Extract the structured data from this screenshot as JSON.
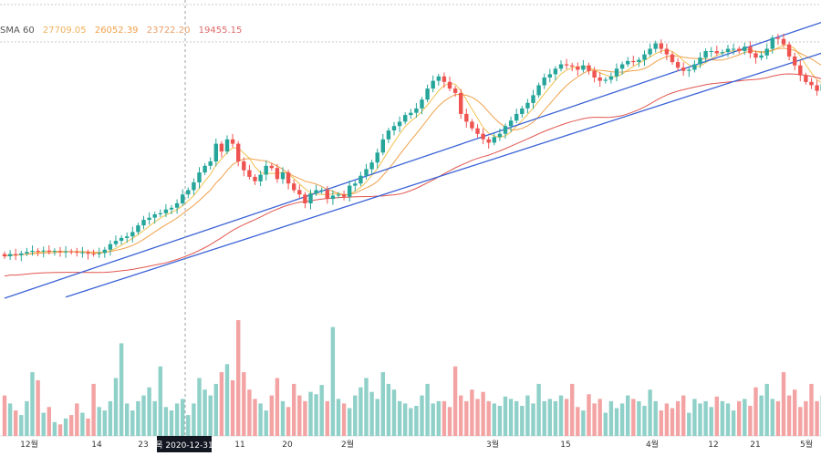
{
  "legend": {
    "label": "SMA 60",
    "values": [
      "27709.05",
      "26052.39",
      "23722.20",
      "19455.15"
    ],
    "colors": [
      "#f0b15a",
      "#f3a04a",
      "#e9a06a",
      "#e06a6a"
    ]
  },
  "crosshair_label": "목 2020-12-31",
  "colors": {
    "up": "#26a69a",
    "down": "#ef5350",
    "vol_up": "#8fd0c8",
    "vol_down": "#f3a3a3",
    "trend": "#3b63d6",
    "ma_fast": "#f2c14e",
    "ma_mid": "#f0a04b",
    "ma_slow": "#e0564f"
  },
  "chart_data": {
    "type": "candlestick",
    "title": "",
    "x_tick_labels": [
      "12월",
      "14",
      "23",
      "11",
      "20",
      "2월",
      "3월",
      "15",
      "4월",
      "12",
      "21",
      "5월"
    ],
    "price_range": [
      0,
      100
    ],
    "closes": [
      19.0,
      20.0,
      19.5,
      20.3,
      21.0,
      21.5,
      21.2,
      21.6,
      21.0,
      21.4,
      21.0,
      21.2,
      21.0,
      20.6,
      20.8,
      20.2,
      20.0,
      20.5,
      22.0,
      24.5,
      26.0,
      27.3,
      28.0,
      30.0,
      33.0,
      35.5,
      36.5,
      38.0,
      38.5,
      40.2,
      41.0,
      43.0,
      47.0,
      49.0,
      52.5,
      57.0,
      60.0,
      62.0,
      70.0,
      66.5,
      72.0,
      70.0,
      62.0,
      58.0,
      55.0,
      53.0,
      56.0,
      60.0,
      59.0,
      54.0,
      57.0,
      52.0,
      49.0,
      47.0,
      43.0,
      47.5,
      49.0,
      49.0,
      45.0,
      46.5,
      47.0,
      46.0,
      51.0,
      52.0,
      55.5,
      58.5,
      61.5,
      66.0,
      72.0,
      76.0,
      78.0,
      80.0,
      83.0,
      84.0,
      86.0,
      90.0,
      95.0,
      98.5,
      100.5,
      98.0,
      95.0,
      93.0,
      83.5,
      80.0,
      77.0,
      74.5,
      72.0,
      70.5,
      73.0,
      74.5,
      78.0,
      80.5,
      83.5,
      86.0,
      88.5,
      92.0,
      96.5,
      100.0,
      101.5,
      104.0,
      106.0,
      105.5,
      105.0,
      103.5,
      105.5,
      103.0,
      100.0,
      98.5,
      99.0,
      100.5,
      104.0,
      106.0,
      107.5,
      107.0,
      108.0,
      110.5,
      113.0,
      115.5,
      113.0,
      110.5,
      107.0,
      104.5,
      103.0,
      103.5,
      106.0,
      109.0,
      112.0,
      112.0,
      111.0,
      111.5,
      113.0,
      113.0,
      112.0,
      114.0,
      111.0,
      109.0,
      110.0,
      113.0,
      118.0,
      117.5,
      115.0,
      109.5,
      105.5,
      101.0,
      98.0,
      96.5,
      94.0,
      97.0,
      99.5,
      101.0,
      103.0,
      108.0,
      109.5,
      110.0
    ],
    "trend_channel": {
      "upper": [
        [
          0,
          0.0
        ],
        [
          148,
          126.0
        ]
      ],
      "lower": [
        [
          11,
          0.5
        ],
        [
          148,
          112.0
        ]
      ]
    },
    "volume": [
      0.35,
      0.28,
      0.22,
      0.18,
      0.3,
      0.55,
      0.48,
      0.2,
      0.25,
      0.12,
      0.1,
      0.15,
      0.18,
      0.28,
      0.2,
      0.15,
      0.45,
      0.25,
      0.22,
      0.3,
      0.5,
      0.8,
      0.28,
      0.22,
      0.3,
      0.35,
      0.42,
      0.3,
      0.6,
      0.25,
      0.22,
      0.28,
      0.32,
      0.18,
      0.28,
      0.5,
      0.4,
      0.35,
      0.45,
      0.55,
      0.62,
      0.48,
      1.0,
      0.55,
      0.4,
      0.32,
      0.28,
      0.22,
      0.35,
      0.5,
      0.3,
      0.25,
      0.45,
      0.35,
      0.3,
      0.38,
      0.36,
      0.44,
      0.3,
      0.94,
      0.32,
      0.28,
      0.24,
      0.35,
      0.42,
      0.5,
      0.38,
      0.32,
      0.55,
      0.45,
      0.4,
      0.3,
      0.28,
      0.24,
      0.26,
      0.35,
      0.45,
      0.28,
      0.3,
      0.3,
      0.25,
      0.6,
      0.35,
      0.3,
      0.4,
      0.32,
      0.38,
      0.3,
      0.28,
      0.26,
      0.34,
      0.32,
      0.3,
      0.26,
      0.35,
      0.28,
      0.45,
      0.3,
      0.32,
      0.3,
      0.35,
      0.32,
      0.45,
      0.25,
      0.22,
      0.36,
      0.28,
      0.32,
      0.2,
      0.3,
      0.24,
      0.28,
      0.35,
      0.32,
      0.3,
      0.26,
      0.4,
      0.3,
      0.22,
      0.28,
      0.24,
      0.3,
      0.35,
      0.2,
      0.32,
      0.28,
      0.3,
      0.25,
      0.34,
      0.3,
      0.28,
      0.22,
      0.3,
      0.32,
      0.26,
      0.42,
      0.35,
      0.45,
      0.32,
      0.3,
      0.55,
      0.35,
      0.4,
      0.25,
      0.3,
      0.45,
      0.3,
      0.35,
      0.28,
      0.24,
      0.3,
      0.26
    ]
  }
}
